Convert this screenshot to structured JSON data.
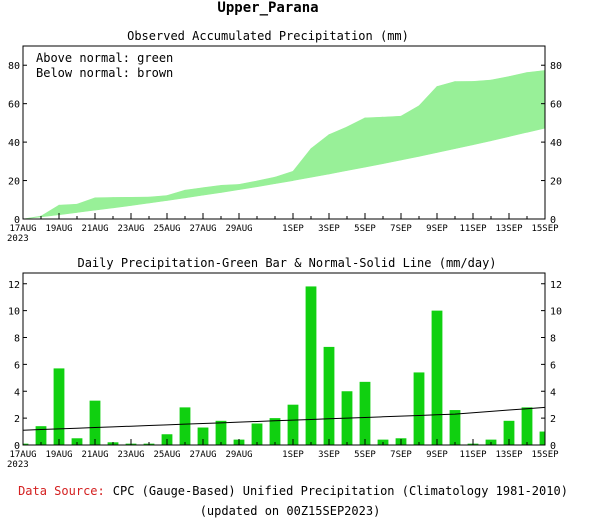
{
  "page": {
    "title": "Upper_Parana",
    "footer_source_label": "Data Source:",
    "footer_source_text": "CPC (Gauge-Based) Unified Precipitation (Climatology 1981-2010)",
    "footer_updated": "(updated on 00Z15SEP2023)",
    "year_label": "2023"
  },
  "colors": {
    "above": "#98f098",
    "below": "#c88a5a",
    "bar": "#10d010",
    "normal": "#000000",
    "source": "#d42020"
  },
  "chart_data": [
    {
      "type": "area",
      "title": "Observed Accumulated Precipitation (mm)",
      "legend": [
        "Above normal: green",
        "Below normal: brown"
      ],
      "legend_placement": "top-left",
      "ylim": [
        0,
        90
      ],
      "yticks": [
        0,
        20,
        40,
        60,
        80
      ],
      "xlim": [
        0,
        29
      ],
      "xtick_positions": [
        0,
        2,
        4,
        6,
        8,
        10,
        12,
        15,
        17,
        19,
        21,
        23,
        25,
        27,
        29
      ],
      "xtick_labels": [
        "17AUG",
        "19AUG",
        "21AUG",
        "23AUG",
        "25AUG",
        "27AUG",
        "29AUG",
        "1SEP",
        "3SEP",
        "5SEP",
        "7SEP",
        "9SEP",
        "11SEP",
        "13SEP",
        "15SEP"
      ],
      "x": [
        0,
        1,
        2,
        3,
        4,
        5,
        6,
        7,
        8,
        9,
        10,
        11,
        12,
        13,
        14,
        15,
        16,
        17,
        18,
        19,
        20,
        21,
        22,
        23,
        24,
        25,
        26,
        27,
        28,
        29
      ],
      "series": [
        {
          "name": "Observed",
          "values": [
            0,
            1.5,
            7.2,
            7.7,
            11,
            11.2,
            11.3,
            11.4,
            12.2,
            15,
            16.3,
            17.5,
            18,
            19.8,
            21.8,
            24.8,
            36.6,
            43.9,
            47.9,
            52.6,
            53,
            53.5,
            58.9,
            68.9,
            71.5,
            71.6,
            72.3,
            74.1,
            76.2,
            77.3
          ]
        },
        {
          "name": "Normal",
          "values": [
            0,
            1.1,
            2.2,
            3.4,
            4.6,
            5.8,
            7,
            8.3,
            9.6,
            11,
            12.4,
            13.8,
            15.3,
            16.8,
            18.4,
            20,
            21.7,
            23.4,
            25.2,
            27,
            28.8,
            30.7,
            32.6,
            34.6,
            36.6,
            38.6,
            40.7,
            42.9,
            45.1,
            47.3
          ]
        }
      ]
    },
    {
      "type": "bar",
      "title": "Daily Precipitation-Green Bar & Normal-Solid Line (mm/day)",
      "ylim": [
        0,
        12.8
      ],
      "yticks": [
        0,
        2,
        4,
        6,
        8,
        10,
        12
      ],
      "xlim": [
        0,
        29
      ],
      "xtick_positions": [
        0,
        2,
        4,
        6,
        8,
        10,
        12,
        15,
        17,
        19,
        21,
        23,
        25,
        27,
        29
      ],
      "xtick_labels": [
        "17AUG",
        "19AUG",
        "21AUG",
        "23AUG",
        "25AUG",
        "27AUG",
        "29AUG",
        "1SEP",
        "3SEP",
        "5SEP",
        "7SEP",
        "9SEP",
        "11SEP",
        "13SEP",
        "15SEP"
      ],
      "x": [
        0,
        1,
        2,
        3,
        4,
        5,
        6,
        7,
        8,
        9,
        10,
        11,
        12,
        13,
        14,
        15,
        16,
        17,
        18,
        19,
        20,
        21,
        22,
        23,
        24,
        25,
        26,
        27,
        28,
        29
      ],
      "series": [
        {
          "name": "Daily",
          "values": [
            0.1,
            1.4,
            5.7,
            0.5,
            3.3,
            0.2,
            0.1,
            0.1,
            0.8,
            2.8,
            1.3,
            1.8,
            0.4,
            1.6,
            2,
            3,
            11.8,
            7.3,
            4,
            4.7,
            0.4,
            0.5,
            5.4,
            10,
            2.6,
            0.1,
            0.4,
            1.8,
            2.8,
            1
          ]
        },
        {
          "name": "Normal",
          "values": [
            1.1,
            1.15,
            1.2,
            1.25,
            1.3,
            1.35,
            1.4,
            1.45,
            1.5,
            1.55,
            1.6,
            1.65,
            1.7,
            1.75,
            1.8,
            1.85,
            1.9,
            1.95,
            2,
            2.05,
            2.1,
            2.15,
            2.2,
            2.25,
            2.3,
            2.4,
            2.5,
            2.6,
            2.7,
            2.8
          ]
        }
      ]
    }
  ]
}
